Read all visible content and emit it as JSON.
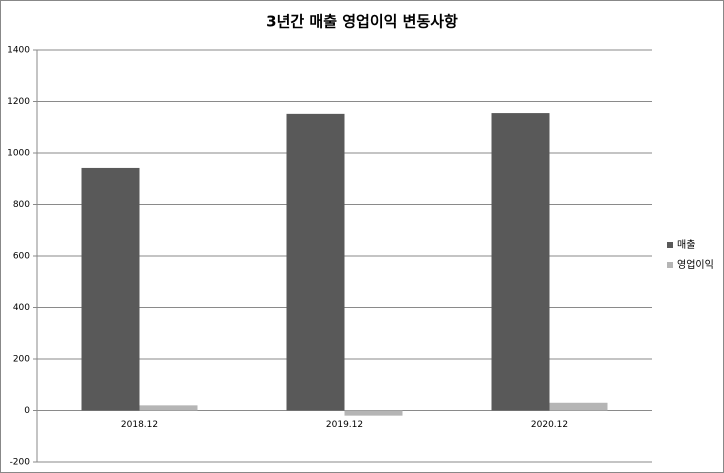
{
  "chart_data": {
    "type": "bar",
    "title": "3년간 매출 영업이익 변동사항",
    "categories": [
      "2018.12",
      "2019.12",
      "2020.12"
    ],
    "series": [
      {
        "name": "매출",
        "color": "#595959",
        "values": [
          942,
          1152,
          1155
        ]
      },
      {
        "name": "영업이익",
        "color": "#b5b5b5",
        "values": [
          20,
          -20,
          30
        ]
      }
    ],
    "ylim": [
      -200,
      1400
    ],
    "yticks": [
      -200,
      0,
      200,
      400,
      600,
      800,
      1000,
      1200,
      1400
    ],
    "grid": true,
    "legend": "right"
  }
}
